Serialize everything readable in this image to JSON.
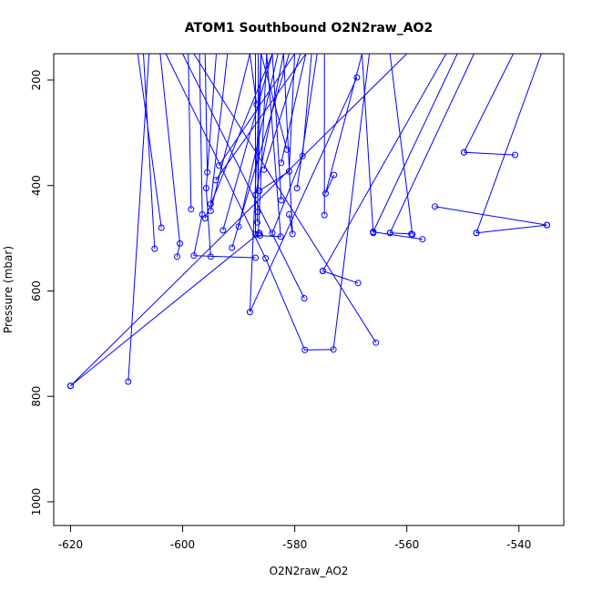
{
  "chart_data": {
    "type": "line",
    "title": "ATOM1 Southbound O2N2raw_AO2",
    "xlabel": "O2N2raw_AO2",
    "ylabel": "Pressure (mbar)",
    "xlim": [
      -623,
      -532
    ],
    "ylim": [
      1045,
      150
    ],
    "y_reversed": true,
    "x_ticks": [
      -620,
      -600,
      -580,
      -560,
      -540
    ],
    "y_ticks": [
      200,
      400,
      600,
      800,
      1000
    ],
    "grid": false,
    "legend": "none",
    "color": "#0000ff",
    "segments": [
      {
        "points": [
          [
            -607,
            150
          ],
          [
            -605,
            520
          ]
        ]
      },
      {
        "points": [
          [
            -608,
            150
          ],
          [
            -603.8,
            480
          ]
        ]
      },
      {
        "points": [
          [
            -604,
            150
          ],
          [
            -600.5,
            510
          ],
          [
            -601,
            535
          ]
        ]
      },
      {
        "points": [
          [
            -599,
            150
          ],
          [
            -598.5,
            445
          ]
        ]
      },
      {
        "points": [
          [
            -597,
            150
          ],
          [
            -596.5,
            455
          ],
          [
            -598,
            533
          ],
          [
            -587,
            537
          ]
        ]
      },
      {
        "points": [
          [
            -596,
            150
          ],
          [
            -595.6,
            375
          ]
        ]
      },
      {
        "points": [
          [
            -594,
            150
          ],
          [
            -595.8,
            405
          ],
          [
            -595,
            535
          ]
        ]
      },
      {
        "points": [
          [
            -592,
            150
          ],
          [
            -595,
            435
          ]
        ]
      },
      {
        "points": [
          [
            -588,
            150
          ],
          [
            -595,
            448
          ]
        ]
      },
      {
        "points": [
          [
            -584,
            150
          ],
          [
            -596,
            462
          ]
        ]
      },
      {
        "points": [
          [
            -580,
            150
          ],
          [
            -593.5,
            362
          ]
        ]
      },
      {
        "points": [
          [
            -584,
            150
          ],
          [
            -592.8,
            485
          ]
        ]
      },
      {
        "points": [
          [
            -581,
            150
          ],
          [
            -591.2,
            518
          ]
        ]
      },
      {
        "points": [
          [
            -583,
            150
          ],
          [
            -590,
            478
          ]
        ]
      },
      {
        "points": [
          [
            -578,
            150
          ],
          [
            -594.1,
            390
          ]
        ]
      },
      {
        "points": [
          [
            -582,
            150
          ],
          [
            -587,
            418
          ]
        ]
      },
      {
        "points": [
          [
            -586,
            150
          ],
          [
            -586.7,
            470
          ]
        ]
      },
      {
        "points": [
          [
            -585,
            150
          ],
          [
            -586.5,
            492
          ]
        ]
      },
      {
        "points": [
          [
            -579,
            150
          ],
          [
            -585.5,
            370
          ]
        ]
      },
      {
        "points": [
          [
            -585,
            150
          ],
          [
            -582.5,
            497
          ],
          [
            -586.2,
            495
          ]
        ]
      },
      {
        "points": [
          [
            -586,
            150
          ],
          [
            -581.4,
            332
          ]
        ]
      },
      {
        "points": [
          [
            -584,
            150
          ],
          [
            -582.4,
            428
          ]
        ]
      },
      {
        "points": [
          [
            -582,
            150
          ],
          [
            -580.4,
            492
          ],
          [
            -581,
            455
          ]
        ]
      },
      {
        "points": [
          [
            -580,
            150
          ],
          [
            -581,
            373
          ],
          [
            -586.3,
            410
          ]
        ]
      },
      {
        "points": [
          [
            -578,
            150
          ],
          [
            -582.4,
            357
          ]
        ]
      },
      {
        "points": [
          [
            -576,
            150
          ],
          [
            -579.6,
            405
          ]
        ]
      },
      {
        "points": [
          [
            -577,
            150
          ],
          [
            -578.6,
            344
          ],
          [
            -584,
            490
          ]
        ]
      },
      {
        "points": [
          [
            -587,
            150
          ],
          [
            -587,
            493
          ]
        ]
      },
      {
        "points": [
          [
            -586.5,
            150
          ],
          [
            -586.6,
            450
          ]
        ]
      },
      {
        "points": [
          [
            -588,
            150
          ],
          [
            -586.8,
            246
          ]
        ]
      },
      {
        "points": [
          [
            -586,
            150
          ],
          [
            -588,
            640
          ],
          [
            -568.9,
            195
          ]
        ]
      },
      {
        "points": [
          [
            -606,
            150
          ],
          [
            -609.7,
            772
          ]
        ]
      },
      {
        "points": [
          [
            -620,
            780
          ],
          [
            -560,
            150
          ]
        ]
      },
      {
        "points": [
          [
            -620,
            780
          ],
          [
            -586.3,
            490
          ]
        ]
      },
      {
        "points": [
          [
            -603,
            150
          ],
          [
            -585.2,
            538
          ],
          [
            -578.2,
            712
          ],
          [
            -573.1,
            711
          ],
          [
            -566.7,
            150
          ]
        ]
      },
      {
        "points": [
          [
            -600,
            150
          ],
          [
            -578.3,
            614
          ]
        ]
      },
      {
        "points": [
          [
            -598,
            150
          ],
          [
            -565.5,
            698
          ]
        ]
      },
      {
        "points": [
          [
            -574.7,
            456
          ],
          [
            -574.7,
            150
          ]
        ]
      },
      {
        "points": [
          [
            -573,
            380
          ],
          [
            -574.5,
            415
          ],
          [
            -568,
            150
          ]
        ]
      },
      {
        "points": [
          [
            -575,
            562
          ],
          [
            -568.7,
            585
          ]
        ]
      },
      {
        "points": [
          [
            -575,
            562
          ],
          [
            -553,
            150
          ]
        ]
      },
      {
        "points": [
          [
            -566,
            488
          ],
          [
            -557.2,
            502
          ]
        ]
      },
      {
        "points": [
          [
            -566,
            488
          ],
          [
            -551,
            150
          ]
        ]
      },
      {
        "points": [
          [
            -563,
            490
          ],
          [
            -559.2,
            492
          ]
        ]
      },
      {
        "points": [
          [
            -563,
            490
          ],
          [
            -548,
            150
          ]
        ]
      },
      {
        "points": [
          [
            -549.8,
            337
          ],
          [
            -540.7,
            342
          ]
        ]
      },
      {
        "points": [
          [
            -549.8,
            337
          ],
          [
            -541,
            150
          ]
        ]
      },
      {
        "points": [
          [
            -547.6,
            490
          ],
          [
            -535,
            475
          ]
        ]
      },
      {
        "points": [
          [
            -547.6,
            490
          ],
          [
            -536,
            150
          ]
        ]
      },
      {
        "points": [
          [
            -555,
            440
          ],
          [
            -535,
            475
          ]
        ]
      },
      {
        "points": [
          [
            -559,
            493
          ],
          [
            -563,
            150
          ]
        ]
      },
      {
        "points": [
          [
            -568,
            150
          ],
          [
            -566,
            490
          ]
        ]
      }
    ]
  }
}
